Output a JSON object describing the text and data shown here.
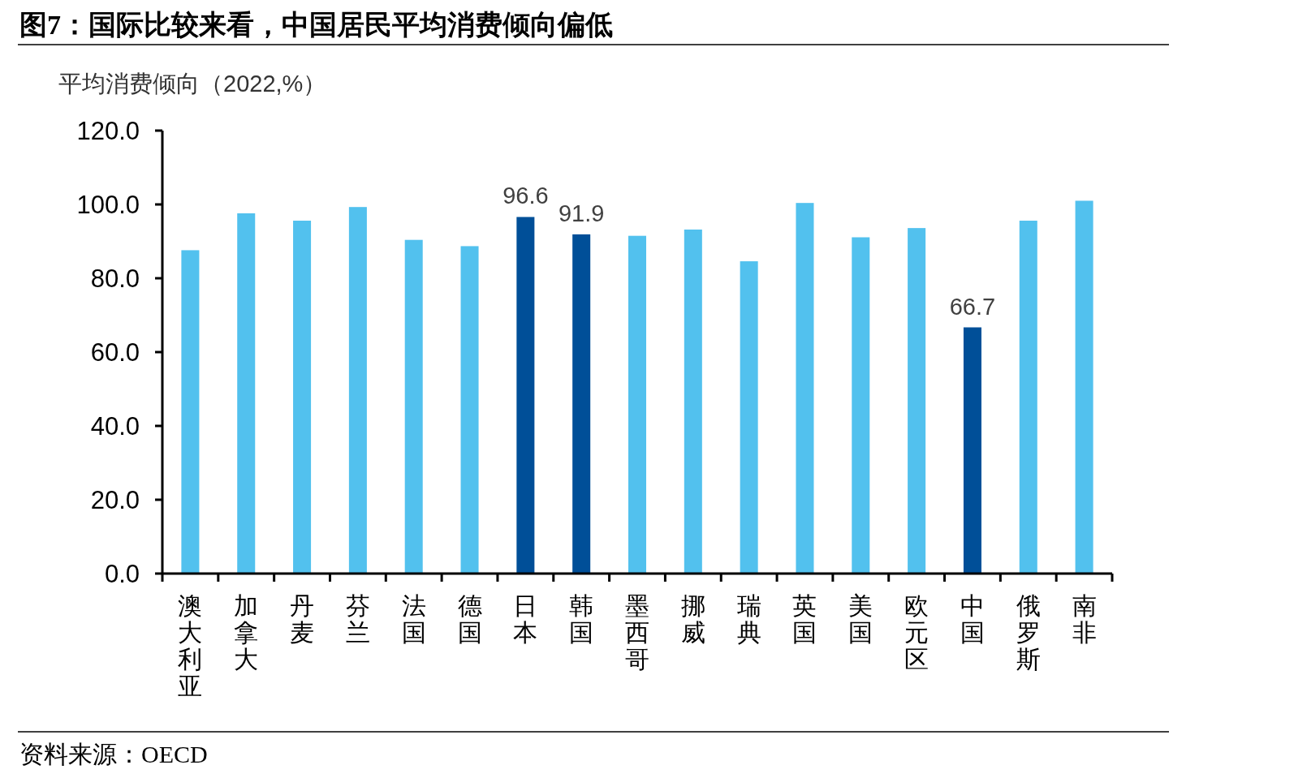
{
  "chart_data": {
    "type": "bar",
    "title": "图7：国际比较来看，中国居民平均消费倾向偏低",
    "ylabel": "平均消费倾向（2022,%）",
    "categories": [
      "澳大利亚",
      "加拿大",
      "丹麦",
      "芬兰",
      "法国",
      "德国",
      "日本",
      "韩国",
      "墨西哥",
      "挪威",
      "瑞典",
      "英国",
      "美国",
      "欧元区",
      "中国",
      "俄罗斯",
      "南非"
    ],
    "values": [
      87.6,
      97.6,
      95.6,
      99.3,
      90.4,
      88.7,
      96.6,
      91.9,
      91.5,
      93.2,
      84.6,
      100.4,
      91.1,
      93.6,
      66.7,
      95.6,
      101.0
    ],
    "colors": [
      "#52c1ee",
      "#52c1ee",
      "#52c1ee",
      "#52c1ee",
      "#52c1ee",
      "#52c1ee",
      "#004f98",
      "#004f98",
      "#52c1ee",
      "#52c1ee",
      "#52c1ee",
      "#52c1ee",
      "#52c1ee",
      "#52c1ee",
      "#004f98",
      "#52c1ee",
      "#52c1ee"
    ],
    "value_labels": [
      null,
      null,
      null,
      null,
      null,
      null,
      "96.6",
      "91.9",
      null,
      null,
      null,
      null,
      null,
      null,
      "66.7",
      null,
      null
    ],
    "ylim": [
      0,
      120
    ],
    "yticks": [
      {
        "value": 0,
        "label": "0.0"
      },
      {
        "value": 20,
        "label": "20.0"
      },
      {
        "value": 40,
        "label": "40.0"
      },
      {
        "value": 60,
        "label": "60.0"
      },
      {
        "value": 80,
        "label": "80.0"
      },
      {
        "value": 100,
        "label": "100.0"
      },
      {
        "value": 120,
        "label": "120.0"
      }
    ],
    "annotations": [
      "资料来源：OECD"
    ]
  }
}
